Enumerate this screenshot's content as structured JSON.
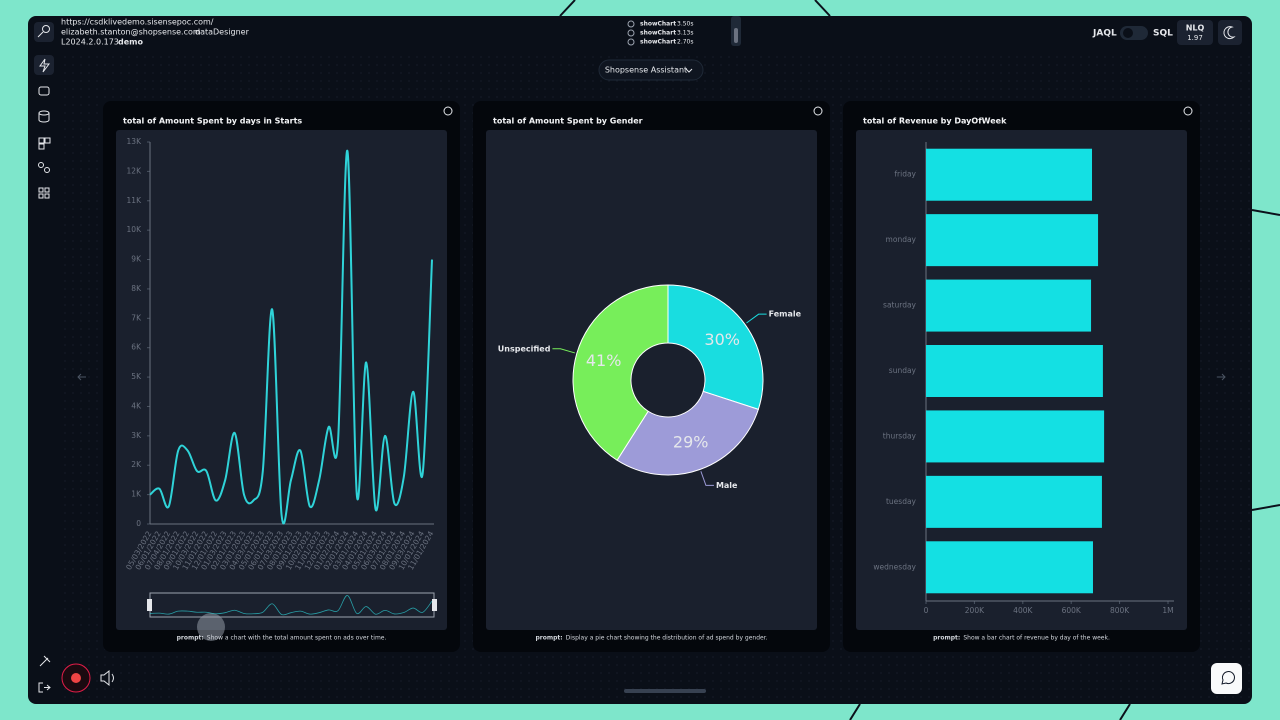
{
  "browser": {
    "url": "https://csdklivedemo.sisensepoc.com/",
    "user": "elizabeth.stanton@shopsense.com",
    "role": "dataDesigner",
    "version": "L2024.2.0.173",
    "env": "demo"
  },
  "log": [
    {
      "name": "showChart",
      "time": "3.50s"
    },
    {
      "name": "showChart",
      "time": "3.13s"
    },
    {
      "name": "showChart",
      "time": "2.70s"
    }
  ],
  "toolbar": {
    "jaql": "JAQL",
    "sql": "SQL",
    "nlq": "NLQ",
    "nlq_version": "1.97"
  },
  "assistant": "Shopsense Assistant",
  "prompt_label": "prompt:",
  "chart_data": [
    {
      "type": "line",
      "title": "total of Amount Spent by days in Starts",
      "color": "#2fd3d8",
      "categories": [
        "05/03/2022",
        "06/01/2022",
        "07/04/2022",
        "08/01/2022",
        "09/01/2022",
        "10/03/2022",
        "11/01/2022",
        "12/01/2022",
        "01/03/2023",
        "02/01/2023",
        "03/01/2023",
        "04/03/2023",
        "05/01/2023",
        "06/01/2023",
        "07/03/2023",
        "08/01/2023",
        "09/01/2023",
        "10/02/2023",
        "11/01/2023",
        "12/01/2023",
        "01/02/2024",
        "02/01/2024",
        "03/01/2024",
        "04/01/2024",
        "05/01/2024",
        "06/03/2024",
        "07/01/2024",
        "08/01/2024",
        "09/03/2024",
        "10/01/2024",
        "11/01/2024"
      ],
      "values": [
        1000,
        1200,
        600,
        2500,
        2500,
        1800,
        1800,
        800,
        1500,
        3100,
        1000,
        800,
        1800,
        7300,
        300,
        1500,
        2500,
        600,
        1500,
        3300,
        2800,
        12700,
        1000,
        5500,
        500,
        3000,
        700,
        1600,
        4500,
        1700,
        9000
      ],
      "ylim": [
        0,
        13000
      ],
      "yticks": [
        0,
        {
          "value": 1000,
          "label": "1K"
        },
        {
          "value": 2000,
          "label": "2K"
        },
        {
          "value": 3000,
          "label": "3K"
        },
        {
          "value": 4000,
          "label": "4K"
        },
        {
          "value": 5000,
          "label": "5K"
        },
        {
          "value": 6000,
          "label": "6K"
        },
        {
          "value": 7000,
          "label": "7K"
        },
        {
          "value": 8000,
          "label": "8K"
        },
        {
          "value": 9000,
          "label": "9K"
        },
        {
          "value": 10000,
          "label": "10K"
        },
        {
          "value": 11000,
          "label": "11K"
        },
        {
          "value": 12000,
          "label": "12K"
        },
        {
          "value": 13000,
          "label": "13K"
        }
      ],
      "prompt": "Show a chart with the total amount spent on ads over time."
    },
    {
      "type": "donut",
      "title": "total of Amount Spent by Gender",
      "categories": [
        "Female",
        "Male",
        "Unspecified"
      ],
      "values": [
        30,
        29,
        41
      ],
      "value_labels": [
        "30%",
        "29%",
        "41%"
      ],
      "colors": [
        "#19dde0",
        "#9d9bd8",
        "#77ee5a"
      ],
      "prompt": "Display a pie chart showing the distribution of ad spend by gender."
    },
    {
      "type": "hbar",
      "title": "total of Revenue by DayOfWeek",
      "color": "#14e0e3",
      "categories": [
        "friday",
        "monday",
        "saturday",
        "sunday",
        "thursday",
        "tuesday",
        "wednesday"
      ],
      "values": [
        686000,
        711000,
        682000,
        731000,
        736000,
        727000,
        690000
      ],
      "xlim": [
        0,
        1000000
      ],
      "xticks": [
        0,
        {
          "value": 200000,
          "label": "200K"
        },
        {
          "value": 400000,
          "label": "400K"
        },
        {
          "value": 600000,
          "label": "600K"
        },
        {
          "value": 800000,
          "label": "800K"
        },
        {
          "value": 1000000,
          "label": "1M"
        }
      ],
      "prompt": "Show a bar chart of revenue by day of the week."
    }
  ]
}
